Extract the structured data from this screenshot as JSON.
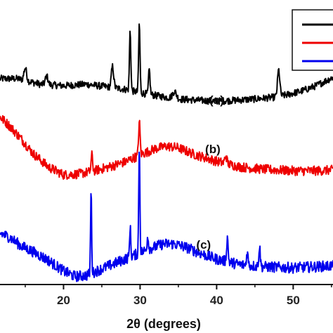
{
  "chart_data": {
    "type": "line",
    "xlabel": "2θ (degrees)",
    "ylabel": "",
    "title": "",
    "xlim": [
      11.7,
      55.2
    ],
    "x_ticks": [
      20,
      30,
      40,
      50
    ],
    "x_tick_labels": [
      "20",
      "30",
      "40",
      "50"
    ],
    "y_ticks_shown": false,
    "grid": false,
    "legend_placement": "top-right",
    "legend_entries": [
      "",
      "",
      ""
    ],
    "series": [
      {
        "label": "(a)",
        "label_x": 40.0,
        "color": "#000000",
        "baseline": [
          [
            11.7,
            0.4
          ],
          [
            14,
            0.4
          ],
          [
            17,
            0.32
          ],
          [
            20,
            0.3
          ],
          [
            23,
            0.32
          ],
          [
            26,
            0.28
          ],
          [
            28,
            0.25
          ],
          [
            30,
            0.2
          ],
          [
            32,
            0.16
          ],
          [
            35,
            0.11
          ],
          [
            38,
            0.09
          ],
          [
            40,
            0.08
          ],
          [
            42,
            0.09
          ],
          [
            45,
            0.11
          ],
          [
            48,
            0.14
          ],
          [
            51,
            0.22
          ],
          [
            53,
            0.3
          ],
          [
            55.2,
            0.42
          ]
        ],
        "peaks": [
          [
            15.0,
            0.18,
            0.35
          ],
          [
            17.8,
            0.12,
            0.35
          ],
          [
            26.4,
            0.3,
            0.3
          ],
          [
            28.7,
            0.85,
            0.18
          ],
          [
            29.9,
            0.98,
            0.18
          ],
          [
            31.2,
            0.35,
            0.2
          ],
          [
            34.5,
            0.1,
            0.5
          ],
          [
            48.1,
            0.38,
            0.3
          ]
        ],
        "noise": 0.05,
        "y_range": [
          0.0,
          1.0
        ]
      },
      {
        "label": "(b)",
        "label_x": 39.5,
        "color": "#ee0000",
        "baseline": [
          [
            11.7,
            0.9
          ],
          [
            13,
            0.78
          ],
          [
            14.5,
            0.62
          ],
          [
            16,
            0.44
          ],
          [
            18,
            0.27
          ],
          [
            20,
            0.17
          ],
          [
            22,
            0.18
          ],
          [
            24,
            0.22
          ],
          [
            26,
            0.27
          ],
          [
            28,
            0.33
          ],
          [
            30,
            0.42
          ],
          [
            32,
            0.5
          ],
          [
            33.5,
            0.53
          ],
          [
            35,
            0.51
          ],
          [
            37,
            0.43
          ],
          [
            40,
            0.34
          ],
          [
            43,
            0.27
          ],
          [
            46,
            0.24
          ],
          [
            50,
            0.22
          ],
          [
            53,
            0.22
          ],
          [
            55.2,
            0.23
          ]
        ],
        "peaks": [
          [
            23.7,
            0.2,
            0.2
          ],
          [
            29.9,
            0.42,
            0.2
          ],
          [
            41.2,
            0.1,
            0.25
          ]
        ],
        "noise": 0.06,
        "y_range": [
          0.0,
          1.0
        ]
      },
      {
        "label": "(c)",
        "label_x": 38.3,
        "color": "#0000ee",
        "baseline": [
          [
            11.7,
            0.52
          ],
          [
            13,
            0.48
          ],
          [
            14.5,
            0.4
          ],
          [
            16,
            0.35
          ],
          [
            18,
            0.27
          ],
          [
            20,
            0.17
          ],
          [
            21.5,
            0.12
          ],
          [
            23,
            0.13
          ],
          [
            25,
            0.19
          ],
          [
            27,
            0.25
          ],
          [
            29,
            0.31
          ],
          [
            31,
            0.37
          ],
          [
            33,
            0.42
          ],
          [
            34.5,
            0.42
          ],
          [
            36,
            0.39
          ],
          [
            38,
            0.33
          ],
          [
            40,
            0.28
          ],
          [
            43,
            0.23
          ],
          [
            46,
            0.21
          ],
          [
            50,
            0.2
          ],
          [
            53,
            0.21
          ],
          [
            55.2,
            0.22
          ]
        ],
        "peaks": [
          [
            23.6,
            0.77,
            0.14
          ],
          [
            28.7,
            0.28,
            0.15
          ],
          [
            29.9,
            1.0,
            0.15
          ],
          [
            31.0,
            0.12,
            0.2
          ],
          [
            41.4,
            0.22,
            0.2
          ],
          [
            44.0,
            0.12,
            0.2
          ],
          [
            45.6,
            0.18,
            0.2
          ]
        ],
        "noise": 0.05,
        "y_range": [
          0.0,
          1.0
        ]
      }
    ]
  }
}
